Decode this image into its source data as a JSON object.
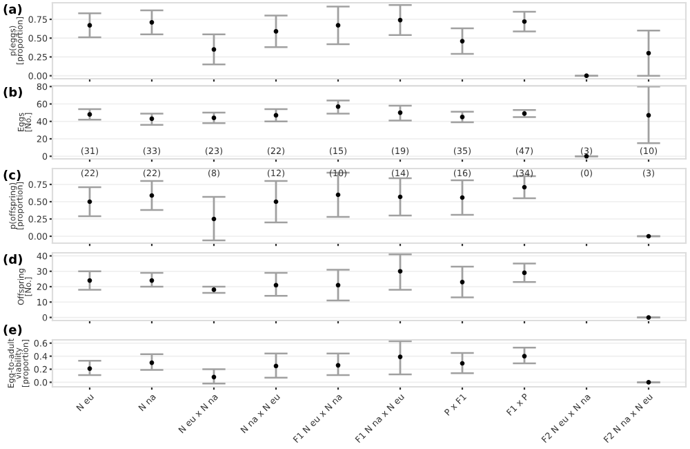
{
  "chart_data": [
    {
      "type": "scatter",
      "title": "(a)",
      "ylabel": "p(eggs)\n[proportion]",
      "categories": [
        null,
        null,
        null,
        null,
        null,
        null,
        null,
        null,
        null,
        null
      ],
      "values": [
        0.67,
        0.71,
        0.35,
        0.59,
        0.67,
        0.74,
        0.46,
        0.72,
        0.0,
        0.3
      ],
      "errors": [
        [
          0.51,
          0.83
        ],
        [
          0.55,
          0.87
        ],
        [
          0.15,
          0.55
        ],
        [
          0.38,
          0.8
        ],
        [
          0.42,
          0.92
        ],
        [
          0.54,
          0.94
        ],
        [
          0.29,
          0.63
        ],
        [
          0.59,
          0.85
        ],
        [
          0.0,
          0.0
        ],
        [
          0.0,
          0.6
        ]
      ],
      "color": "#000000",
      "ylim": [
        -0.04,
        0.97
      ],
      "yticks": [
        {
          "value": 0,
          "label": "0.00"
        },
        {
          "value": 0.25,
          "label": "0.25"
        },
        {
          "value": 0.5,
          "label": "0.50"
        },
        {
          "value": 0.75,
          "label": "0.75"
        }
      ],
      "grid": "y",
      "tick_labels": "y",
      "marker": "circle"
    },
    {
      "type": "scatter",
      "title": "(b)",
      "ylabel": "Eggs\n[No.]",
      "categories": [
        null,
        null,
        null,
        null,
        null,
        null,
        null,
        null,
        null,
        null
      ],
      "values": [
        48,
        43,
        44,
        47,
        57,
        50,
        45,
        49,
        0,
        47
      ],
      "errors": [
        [
          42,
          54
        ],
        [
          36,
          49
        ],
        [
          38,
          50
        ],
        [
          40,
          54
        ],
        [
          49,
          64
        ],
        [
          41,
          58
        ],
        [
          39,
          51
        ],
        [
          45,
          53
        ],
        [
          0,
          0
        ],
        [
          15,
          80
        ]
      ],
      "annotations": [
        "(31)",
        "(33)",
        "(23)",
        "(22)",
        "(15)",
        "(19)",
        "(35)",
        "(47)",
        "(3)",
        "(10)"
      ],
      "color": "#000000",
      "ylim": [
        -3,
        81
      ],
      "yticks": [
        0,
        20,
        40,
        60,
        80
      ],
      "grid": "y",
      "tick_labels": "y",
      "marker": "circle"
    },
    {
      "type": "scatter",
      "title": "(c)",
      "ylabel": "p(offspring)\n[proportion]",
      "categories": [
        null,
        null,
        null,
        null,
        null,
        null,
        null,
        null,
        null,
        null
      ],
      "values": [
        0.5,
        0.59,
        0.25,
        0.5,
        0.6,
        0.57,
        0.56,
        0.71,
        null,
        0.0
      ],
      "errors": [
        [
          0.29,
          0.71
        ],
        [
          0.38,
          0.8
        ],
        [
          -0.06,
          0.57
        ],
        [
          0.2,
          0.8
        ],
        [
          0.28,
          0.92
        ],
        [
          0.3,
          0.84
        ],
        [
          0.31,
          0.81
        ],
        [
          0.55,
          0.87
        ],
        null,
        [
          0.0,
          0.0
        ]
      ],
      "annotations": [
        "(22)",
        "(22)",
        "(8)",
        "(12)",
        "(10)",
        "(14)",
        "(16)",
        "(34)",
        "(0)",
        "(3)"
      ],
      "color": "#000000",
      "ylim": [
        -0.1,
        0.98
      ],
      "yticks": [
        {
          "value": 0,
          "label": "0.00"
        },
        {
          "value": 0.25,
          "label": "0.25"
        },
        {
          "value": 0.5,
          "label": "0.50"
        },
        {
          "value": 0.75,
          "label": "0.75"
        }
      ],
      "grid": "y",
      "tick_labels": "y",
      "marker": "circle"
    },
    {
      "type": "scatter",
      "title": "(d)",
      "ylabel": "Offspring\n[No.]",
      "categories": [
        null,
        null,
        null,
        null,
        null,
        null,
        null,
        null,
        null,
        null
      ],
      "values": [
        24,
        24,
        18,
        21,
        21,
        30,
        23,
        29,
        null,
        0
      ],
      "errors": [
        [
          18,
          30
        ],
        [
          20,
          29
        ],
        [
          16,
          20
        ],
        [
          14,
          29
        ],
        [
          11,
          31
        ],
        [
          18,
          41
        ],
        [
          13,
          33
        ],
        [
          23,
          35
        ],
        null,
        [
          0,
          0
        ]
      ],
      "color": "#000000",
      "ylim": [
        -2,
        42
      ],
      "yticks": [
        0,
        10,
        20,
        30,
        40
      ],
      "grid": "y",
      "tick_labels": "y",
      "marker": "circle"
    },
    {
      "type": "scatter",
      "title": "(e)",
      "ylabel": "Egg-to-adult\nviability\n[proportion]",
      "categories": [
        "N eu",
        "N na",
        "N eu x N na",
        "N na x N eu",
        "F1 N eu x N na",
        "F1 N na x N eu",
        "P x F1",
        "F1 x P",
        "F2 N eu x N na",
        "F2 N na x N eu"
      ],
      "values": [
        0.21,
        0.3,
        0.08,
        0.25,
        0.26,
        0.39,
        0.29,
        0.4,
        null,
        0.0
      ],
      "errors": [
        [
          0.11,
          0.33
        ],
        [
          0.19,
          0.43
        ],
        [
          -0.02,
          0.2
        ],
        [
          0.07,
          0.44
        ],
        [
          0.11,
          0.44
        ],
        [
          0.12,
          0.63
        ],
        [
          0.14,
          0.45
        ],
        [
          0.29,
          0.53
        ],
        null,
        [
          0.0,
          0.0
        ]
      ],
      "color": "#000000",
      "ylim": [
        -0.07,
        0.65
      ],
      "yticks": [
        {
          "value": 0,
          "label": "0.0"
        },
        {
          "value": 0.2,
          "label": "0.2"
        },
        {
          "value": 0.4,
          "label": "0.4"
        },
        {
          "value": 0.6,
          "label": "0.6"
        }
      ],
      "grid": "y",
      "marker": "circle"
    }
  ]
}
